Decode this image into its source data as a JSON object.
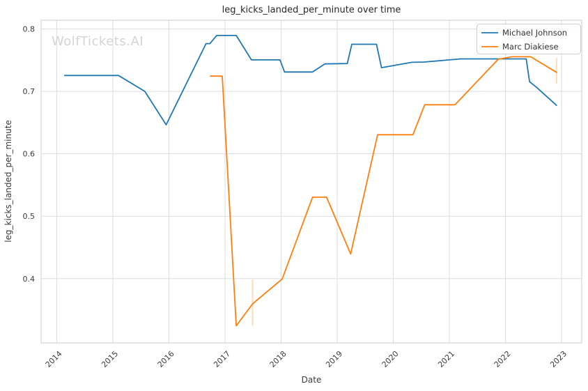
{
  "chart_data": {
    "type": "line",
    "title": "leg_kicks_landed_per_minute over time",
    "xlabel": "Date",
    "ylabel": "leg_kicks_landed_per_minute",
    "watermark": "WolfTickets.AI",
    "grid": true,
    "legend_position": "upper right",
    "xlim": [
      2013.72,
      2023.36
    ],
    "ylim": [
      0.297,
      0.814
    ],
    "x_ticks": [
      2014,
      2015,
      2016,
      2017,
      2018,
      2019,
      2020,
      2021,
      2022,
      2023
    ],
    "x_tick_labels": [
      "2014",
      "2015",
      "2016",
      "2017",
      "2018",
      "2019",
      "2020",
      "2021",
      "2022",
      "2023"
    ],
    "y_ticks": [
      0.4,
      0.5,
      0.6,
      0.7,
      0.8
    ],
    "y_tick_labels": [
      "0.4",
      "0.5",
      "0.6",
      "0.7",
      "0.8"
    ],
    "series": [
      {
        "name": "Michael Johnson",
        "color": "#1f77b4",
        "points": [
          [
            2014.14,
            0.7255
          ],
          [
            2015.1,
            0.7255
          ],
          [
            2015.57,
            0.7
          ],
          [
            2015.95,
            0.6465
          ],
          [
            2016.66,
            0.7765
          ],
          [
            2016.73,
            0.7765
          ],
          [
            2016.85,
            0.7895
          ],
          [
            2017.2,
            0.7895
          ],
          [
            2017.47,
            0.7505
          ],
          [
            2017.98,
            0.7505
          ],
          [
            2018.06,
            0.731
          ],
          [
            2018.56,
            0.731
          ],
          [
            2018.78,
            0.744
          ],
          [
            2019.18,
            0.7445
          ],
          [
            2019.26,
            0.7755
          ],
          [
            2019.7,
            0.7755
          ],
          [
            2019.79,
            0.738
          ],
          [
            2020.33,
            0.7465
          ],
          [
            2020.55,
            0.747
          ],
          [
            2021.2,
            0.752
          ],
          [
            2022.37,
            0.752
          ],
          [
            2022.43,
            0.7155
          ],
          [
            2022.56,
            0.706
          ],
          [
            2022.91,
            0.6775
          ]
        ],
        "error_bars": []
      },
      {
        "name": "Marc Diakiese",
        "color": "#ff7f0e",
        "points": [
          [
            2016.74,
            0.7245
          ],
          [
            2016.95,
            0.7245
          ],
          [
            2017.2,
            0.3245
          ],
          [
            2017.49,
            0.3595
          ],
          [
            2018.02,
            0.3995
          ],
          [
            2018.56,
            0.5305
          ],
          [
            2018.81,
            0.5305
          ],
          [
            2019.24,
            0.4395
          ],
          [
            2019.72,
            0.6305
          ],
          [
            2020.35,
            0.6305
          ],
          [
            2020.56,
            0.6785
          ],
          [
            2021.1,
            0.6785
          ],
          [
            2021.87,
            0.7515
          ],
          [
            2022.12,
            0.7555
          ],
          [
            2022.45,
            0.7555
          ],
          [
            2022.91,
            0.7305
          ]
        ],
        "error_bars": [
          {
            "x": 2017.49,
            "low": 0.3245,
            "high": 0.3985
          },
          {
            "x": 2022.91,
            "low": 0.7125,
            "high": 0.7535
          }
        ]
      }
    ]
  }
}
